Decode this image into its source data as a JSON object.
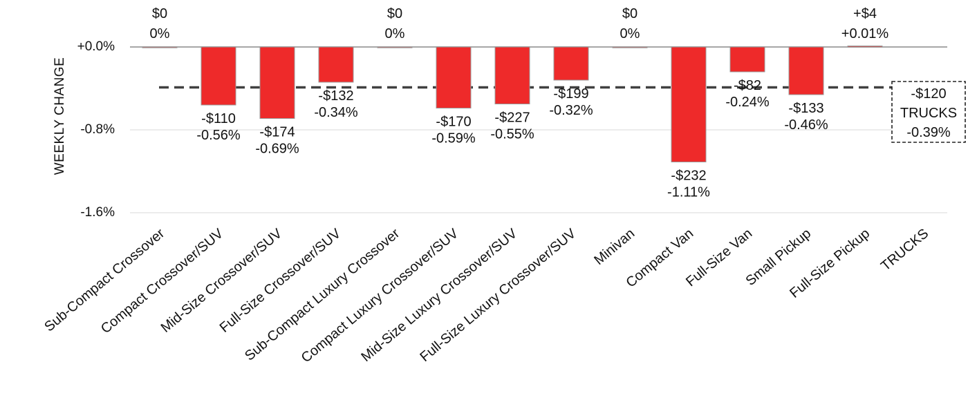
{
  "chart_data": {
    "type": "bar",
    "ylabel": "WEEKLY CHANGE",
    "ylim": [
      -1.6,
      0.0
    ],
    "y_ticks": [
      "+0.0%",
      "-0.8%",
      "-1.6%"
    ],
    "grid": "horizontal",
    "categories": [
      "Sub-Compact Crossover",
      "Compact Crossover/SUV",
      "Mid-Size Crossover/SUV",
      "Full-Size Crossover/SUV",
      "Sub-Compact Luxury Crossover",
      "Compact Luxury Crossover/SUV",
      "Mid-Size Luxury Crossover/SUV",
      "Full-Size Luxury Crossover/SUV",
      "Minivan",
      "Compact Van",
      "Full-Size Van",
      "Small Pickup",
      "Full-Size Pickup",
      "TRUCKS"
    ],
    "values": [
      0,
      -0.56,
      -0.69,
      -0.34,
      0,
      -0.59,
      -0.55,
      -0.32,
      0,
      -1.11,
      -0.24,
      -0.46,
      0.01,
      null
    ],
    "dollar_labels": [
      "$0",
      "-$110",
      "-$174",
      "-$132",
      "$0",
      "-$170",
      "-$227",
      "-$199",
      "$0",
      "-$232",
      "-$82",
      "-$133",
      "+$4",
      ""
    ],
    "percent_labels": [
      "0%",
      "-0.56%",
      "-0.69%",
      "-0.34%",
      "0%",
      "-0.59%",
      "-0.55%",
      "-0.32%",
      "0%",
      "-1.11%",
      "-0.24%",
      "-0.46%",
      "+0.01%",
      ""
    ],
    "reference_line": {
      "value": -0.39,
      "box_lines": [
        "-$120",
        "TRUCKS",
        "-0.39%"
      ]
    },
    "colors": {
      "bar": "#ee2a2a",
      "bar_stroke": "#999999",
      "reference_line": "#404040",
      "grid": "#d9d9d9",
      "axis": "#a6a6a6"
    }
  }
}
